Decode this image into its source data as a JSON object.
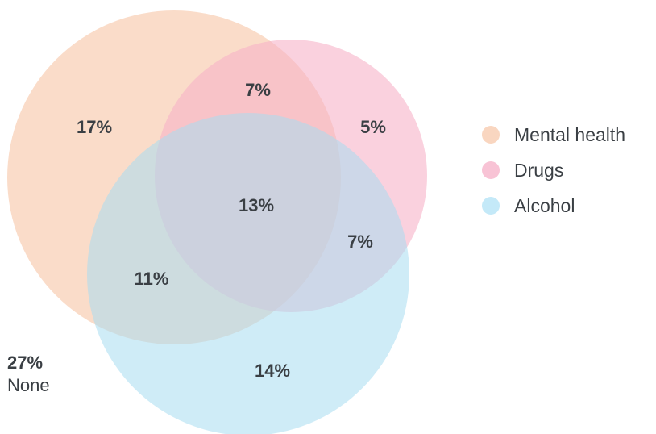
{
  "diagram": {
    "sets": [
      {
        "name": "Mental health",
        "color": "#f9d6c0"
      },
      {
        "name": "Drugs",
        "color": "#f8c3d5"
      },
      {
        "name": "Alcohol",
        "color": "#c4e9f8"
      }
    ],
    "regions": {
      "mental_health_only": "17%",
      "drugs_only": "5%",
      "alcohol_only": "14%",
      "mental_health_and_drugs": "7%",
      "drugs_and_alcohol": "7%",
      "mental_health_and_alcohol": "11%",
      "all_three": "13%"
    },
    "none": {
      "value": "27%",
      "label": "None"
    }
  }
}
